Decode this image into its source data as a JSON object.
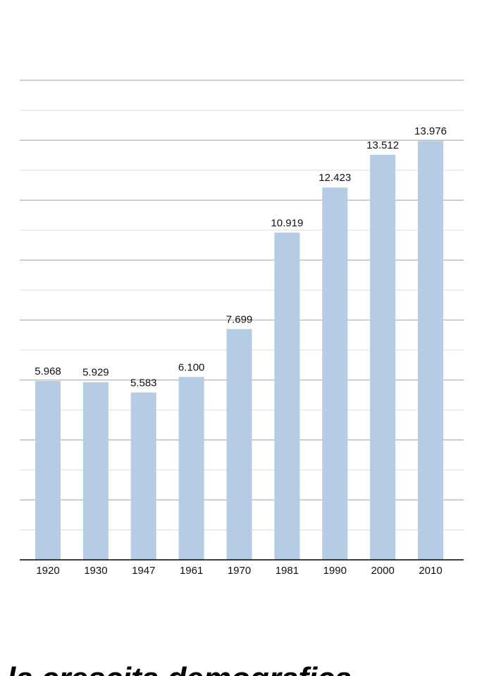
{
  "chart_data": {
    "type": "bar",
    "categories": [
      "1920",
      "1930",
      "1947",
      "1961",
      "1970",
      "1981",
      "1990",
      "2000",
      "2010"
    ],
    "values": [
      5.968,
      5.929,
      5.583,
      6.1,
      7.699,
      10.919,
      12.423,
      13.512,
      13.976
    ],
    "value_labels": [
      "5.968",
      "5.929",
      "5.583",
      "6.100",
      "7.699",
      "10.919",
      "12.423",
      "13.512",
      "13.976"
    ],
    "title": "",
    "xlabel": "",
    "ylabel": "",
    "ylim": [
      0,
      16
    ],
    "grid": true,
    "legend": "none",
    "bar_color": "#b4cde5"
  },
  "caption": "la crescita demografica"
}
